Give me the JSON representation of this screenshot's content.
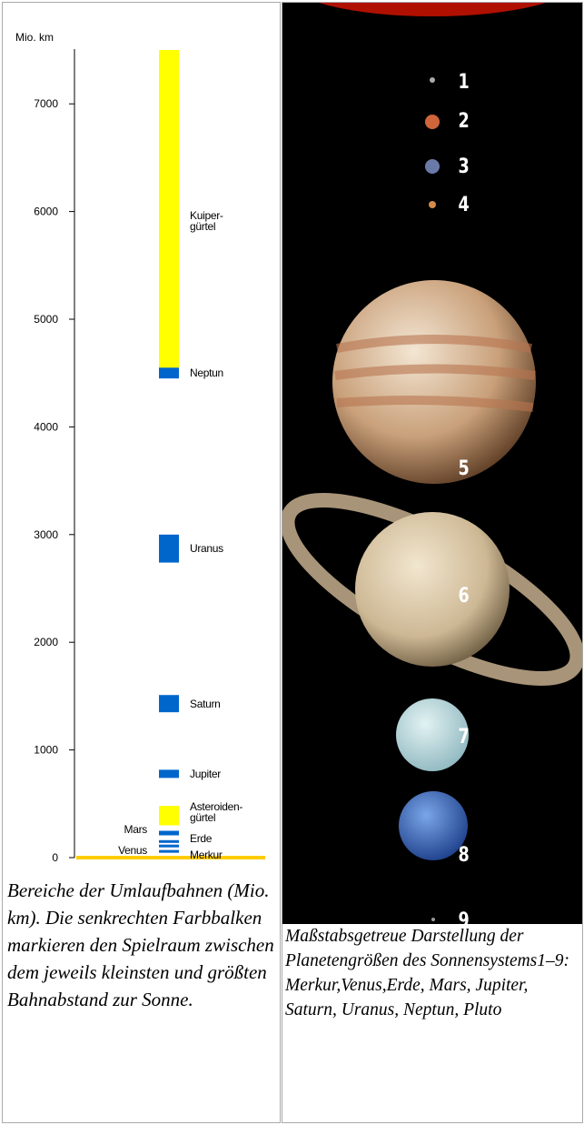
{
  "chart_data": {
    "type": "range-bar",
    "y_label": "Mio. km",
    "categories": [
      "Kuiper-\ngürtel",
      "Neptun",
      "Uranus",
      "Saturn",
      "Jupiter",
      "Asteroiden-\ngürtel",
      "Mars",
      "Erde",
      "Venus",
      "Merkur"
    ],
    "low": [
      4500,
      4450,
      2740,
      1350,
      740,
      300,
      207,
      147,
      107,
      46
    ],
    "high": [
      7500,
      4550,
      3000,
      1510,
      816,
      480,
      249,
      152,
      109,
      70
    ],
    "colors": [
      "#ffff00",
      "#0066cc",
      "#0066cc",
      "#0066cc",
      "#0066cc",
      "#ffff00",
      "#0066cc",
      "#0066cc",
      "#0066cc",
      "#0066cc"
    ],
    "ylim": [
      0,
      7500
    ],
    "yticks": [
      0,
      1000,
      2000,
      3000,
      4000,
      5000,
      6000,
      7000
    ]
  },
  "left_caption": "Bereiche der Umlaufbahnen (Mio. km). Die senkrechten Farbbalken markieren den Spielraum zwischen dem jeweils kleinsten und größten Bahnabstand zur Sonne.",
  "planet_numbers": [
    "1",
    "2",
    "3",
    "4",
    "5",
    "6",
    "7",
    "8",
    "9"
  ],
  "right_caption": "Maßstabsgetreue Darstellung der Planetengrößen des Sonnensystems1–9: Merkur,Venus,Erde, Mars, Jupiter, Saturn,  Uranus, Neptun, Pluto"
}
